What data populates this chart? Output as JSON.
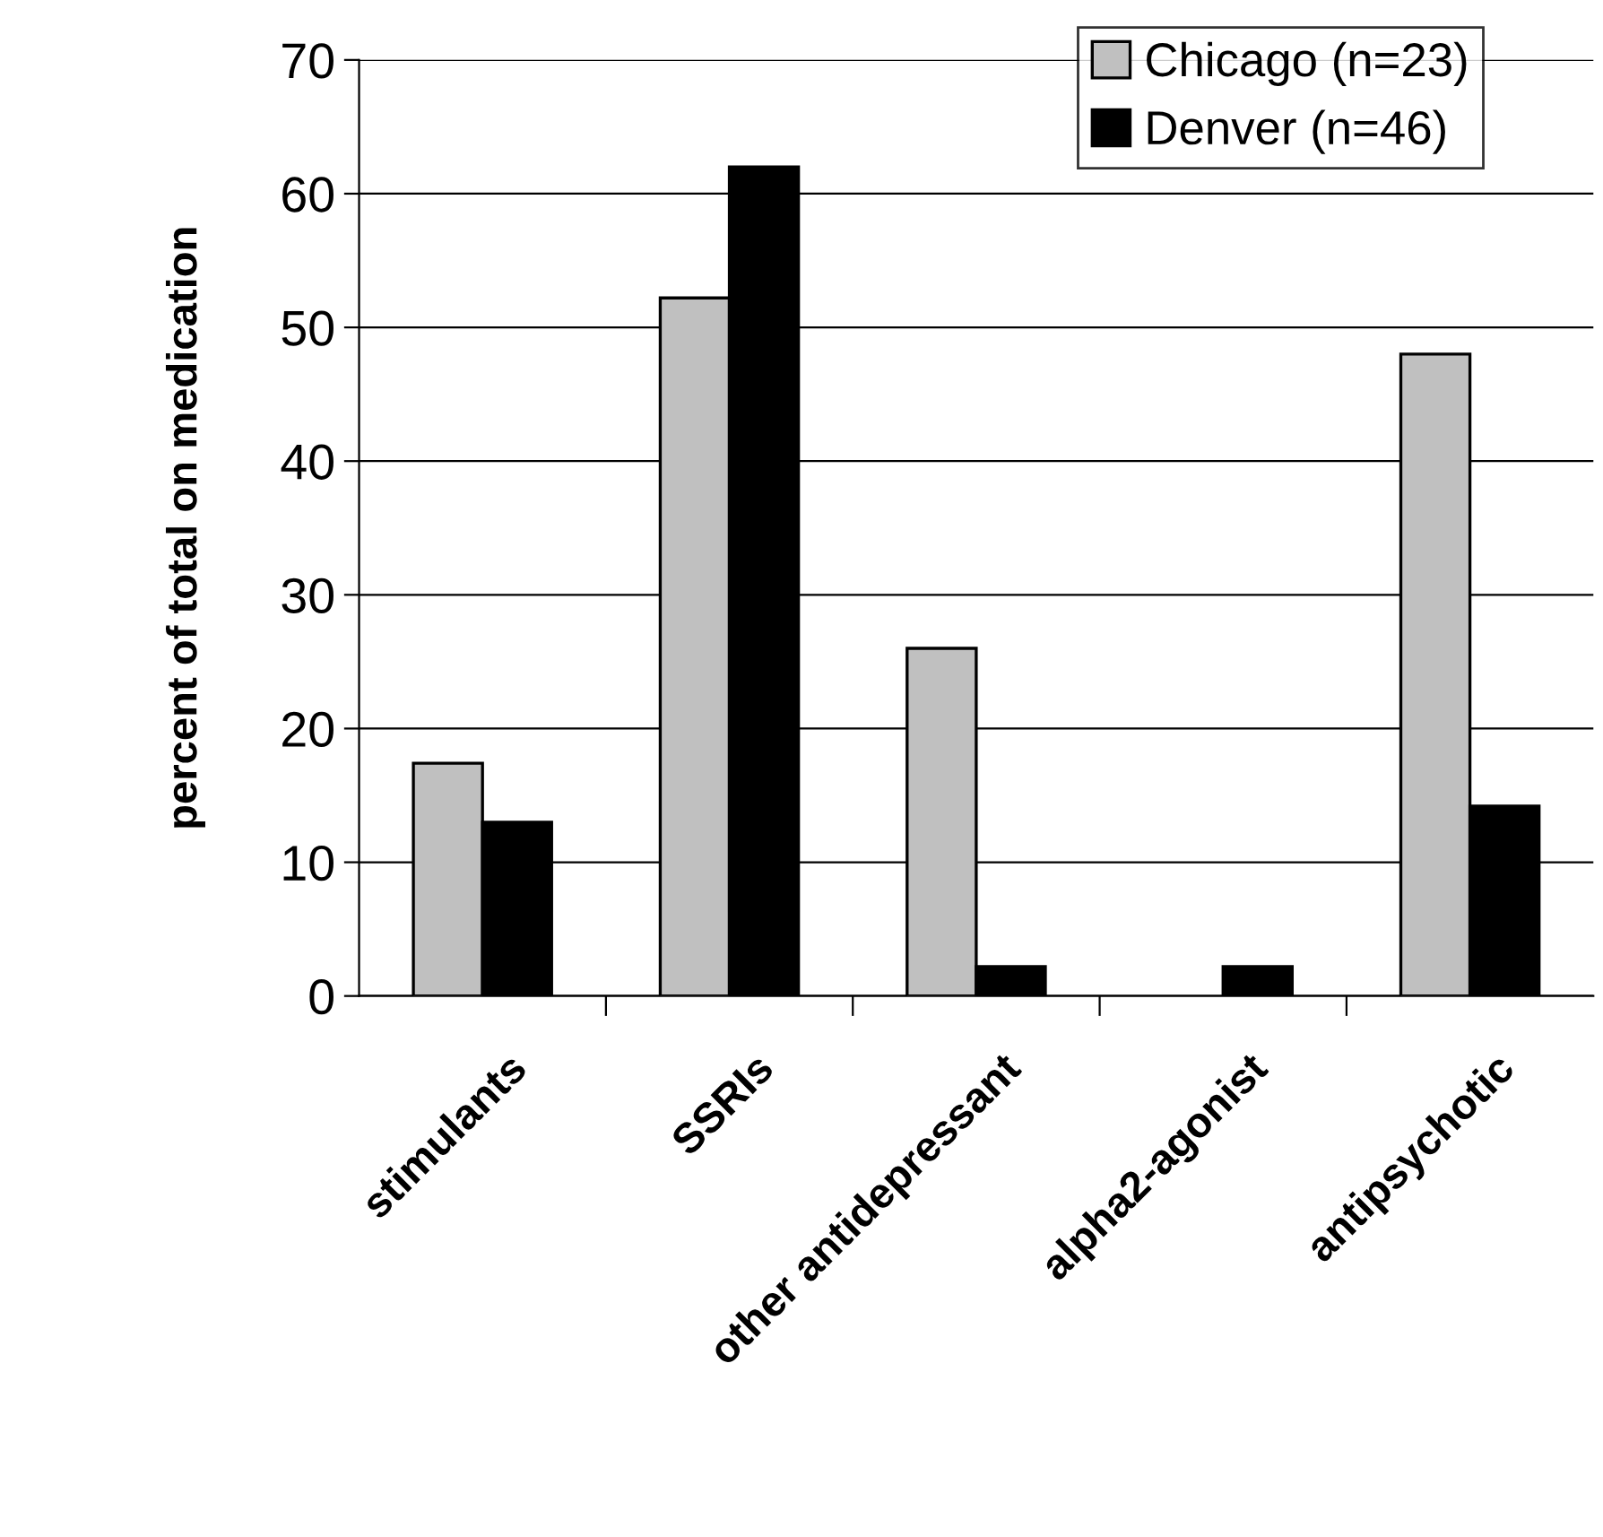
{
  "chart_data": {
    "type": "bar",
    "ylabel": "percent of total on medication",
    "categories": [
      "stimulants",
      "SSRIs",
      "other antidepressant",
      "alpha2-agonist",
      "antipsychotic"
    ],
    "series": [
      {
        "name": "Chicago (n=23)",
        "color": "#c0c0c0",
        "values": [
          17.4,
          52.2,
          26,
          null,
          48
        ]
      },
      {
        "name": "Denver (n=46)",
        "color": "#000000",
        "values": [
          13,
          62,
          2.2,
          2.2,
          14.2
        ]
      }
    ],
    "ylim": [
      0,
      70
    ],
    "yticks": [
      0,
      10,
      20,
      30,
      40,
      50,
      60,
      70
    ],
    "grid": "y",
    "legend": "top right"
  }
}
